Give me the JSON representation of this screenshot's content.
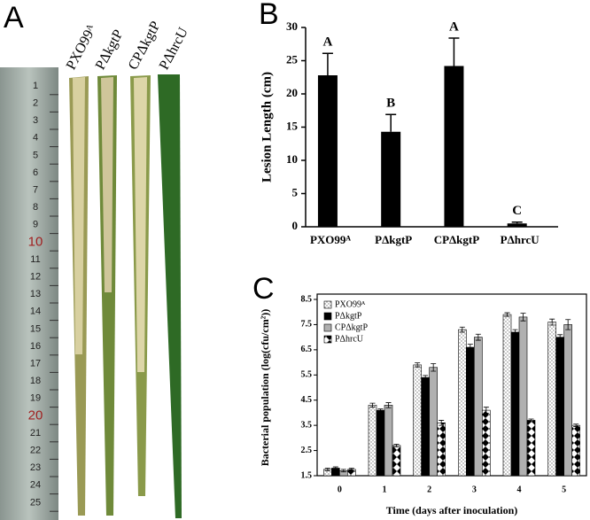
{
  "panel_labels": [
    "A",
    "B",
    "C"
  ],
  "photo": {
    "ruler_labels": [
      1,
      2,
      3,
      4,
      5,
      6,
      7,
      8,
      9,
      10,
      11,
      12,
      13,
      14,
      15,
      16,
      17,
      18,
      19,
      20,
      21,
      22,
      23,
      24,
      25
    ],
    "leaf_labels": [
      "PXO99ᴬ",
      "PΔkgtP",
      "CPΔkgtP",
      "PΔhrcU"
    ]
  },
  "chart_data": [
    {
      "type": "bar",
      "ylabel": "Lesion Length (cm)",
      "categories": [
        "PXO99ᴬ",
        "PΔkgtP",
        "CPΔkgtP",
        "PΔhrcU"
      ],
      "values": [
        22.8,
        14.3,
        24.2,
        0.5
      ],
      "errors": [
        3.3,
        2.6,
        4.2,
        0.2
      ],
      "annotations": [
        "A",
        "B",
        "A",
        "C"
      ],
      "color": "#000000",
      "ylim": [
        0,
        30
      ],
      "yticks": [
        0,
        5,
        10,
        15,
        20,
        25,
        30
      ]
    },
    {
      "type": "grouped_bar",
      "ylabel": "Bacterial population (log(cfu/cm²))",
      "xlabel": "Time (days after inoculation)",
      "categories": [
        "0",
        "1",
        "2",
        "3",
        "4",
        "5"
      ],
      "legend": "upper-left",
      "ylim": [
        1.5,
        8.5
      ],
      "yticks": [
        1.5,
        2.5,
        3.5,
        4.5,
        5.5,
        6.5,
        7.5,
        8.5
      ],
      "series": [
        {
          "name": "PXO99ᴬ",
          "color": "#ffffff",
          "pattern": "dots",
          "values": [
            1.75,
            4.3,
            5.9,
            7.3,
            7.9,
            7.6
          ],
          "errors": [
            0.05,
            0.08,
            0.08,
            0.1,
            0.07,
            0.12
          ]
        },
        {
          "name": "PΔkgtP",
          "color": "#000000",
          "pattern": "solid",
          "values": [
            1.8,
            4.1,
            5.4,
            6.6,
            7.2,
            7.0
          ],
          "errors": [
            0.05,
            0.05,
            0.08,
            0.12,
            0.1,
            0.1
          ]
        },
        {
          "name": "CPΔkgtP",
          "color": "#b0b0b0",
          "pattern": "solid",
          "values": [
            1.7,
            4.3,
            5.8,
            7.0,
            7.8,
            7.5
          ],
          "errors": [
            0.05,
            0.1,
            0.15,
            0.12,
            0.15,
            0.2
          ]
        },
        {
          "name": "PΔhrcU",
          "color": "#ffffff",
          "pattern": "diamonds",
          "values": [
            1.75,
            2.7,
            3.6,
            4.1,
            3.7,
            3.5
          ],
          "errors": [
            0.05,
            0.05,
            0.1,
            0.12,
            0.05,
            0.05
          ]
        }
      ]
    }
  ]
}
